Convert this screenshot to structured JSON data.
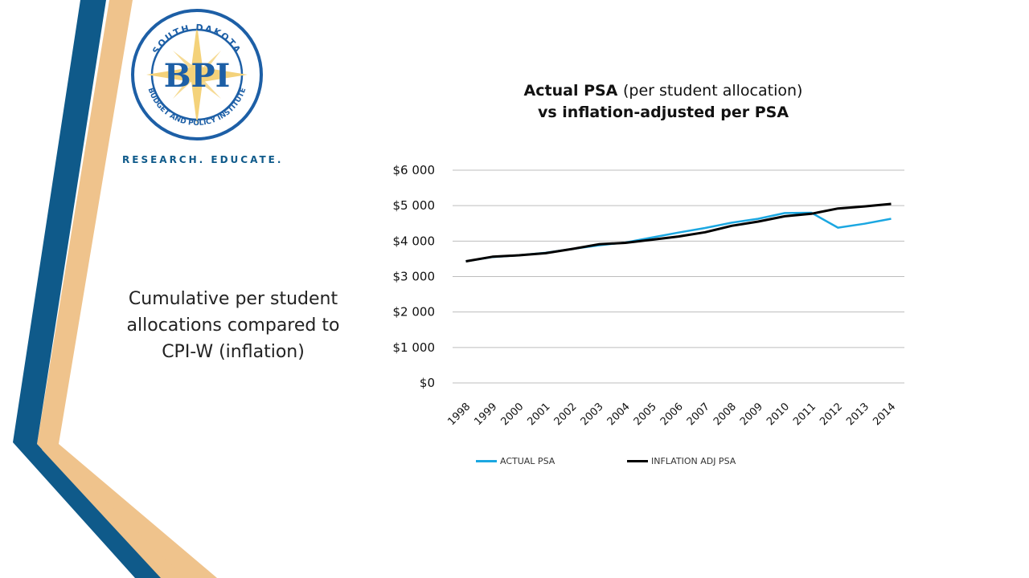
{
  "logo": {
    "arc_top": "SOUTH DAKOTA",
    "arc_bottom": "BUDGET AND POLICY INSTITUTE",
    "acronym": "BPI"
  },
  "tagline": "RESEARCH. EDUCATE.",
  "caption": "Cumulative per student allocations compared to CPI-W (inflation)",
  "chart_title": {
    "line1_main": "Actual  PSA ",
    "line1_sub": "(per student allocation)",
    "line2": "vs inflation-adjusted per PSA"
  },
  "colors": {
    "dark_blue": "#0f5a8a",
    "tan": "#efc38c",
    "actual": "#1ba7e1",
    "inflation": "#000000"
  },
  "chart_data": {
    "type": "line",
    "title": "Actual  PSA (per student allocation) vs inflation-adjusted per PSA",
    "x": [
      "1998",
      "1999",
      "2000",
      "2001",
      "2002",
      "2003",
      "2004",
      "2005",
      "2006",
      "2007",
      "2008",
      "2009",
      "2010",
      "2011",
      "2012",
      "2013",
      "2014"
    ],
    "ylim": [
      0,
      6000
    ],
    "y_ticks": [
      "$0",
      "$1 000",
      "$2 000",
      "$3 000",
      "$4 000",
      "$5 000",
      "$6 000"
    ],
    "grid": true,
    "legend_position": "bottom",
    "series": [
      {
        "name": "ACTUAL PSA",
        "color": "#1ba7e1",
        "values": [
          3430,
          3550,
          3600,
          3670,
          3780,
          3880,
          3960,
          4100,
          4240,
          4370,
          4520,
          4630,
          4790,
          4800,
          4380,
          4490,
          4630
        ]
      },
      {
        "name": "INFLATION ADJ PSA",
        "color": "#000000",
        "values": [
          3430,
          3560,
          3600,
          3660,
          3780,
          3910,
          3950,
          4040,
          4130,
          4250,
          4430,
          4550,
          4700,
          4770,
          4920,
          4980,
          5050
        ]
      }
    ]
  }
}
